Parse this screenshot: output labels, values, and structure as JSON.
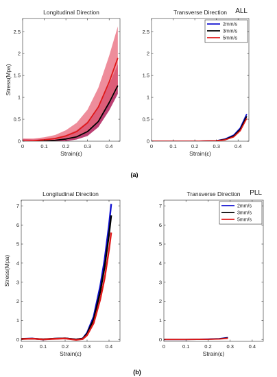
{
  "figure": {
    "panel_a_label": "(a)",
    "panel_b_label": "(b)",
    "colors": {
      "v2": "#1010d0",
      "v3": "#000000",
      "v5": "#e01818",
      "band_red": "#e8677a",
      "band_dark": "#b01f5a"
    }
  },
  "chart_data": [
    {
      "id": "a_long",
      "type": "line",
      "title": "Longitudinal Direction",
      "tag": "",
      "xlabel": "Strain(ε)",
      "ylabel": "Stress(Mpa)",
      "xlim": [
        0,
        0.45
      ],
      "ylim": [
        0,
        2.8
      ],
      "xticks": [
        "0",
        "0.1",
        "0.2",
        "0.3",
        "0.4"
      ],
      "xtick_values": [
        0,
        0.1,
        0.2,
        0.3,
        0.4
      ],
      "yticks": [
        "0",
        "0.5",
        "1",
        "1.5",
        "2",
        "2.5"
      ],
      "ytick_values": [
        0,
        0.5,
        1,
        1.5,
        2,
        2.5
      ],
      "legend": false,
      "bands": [
        {
          "series": "3mm/s",
          "x": [
            0,
            0.05,
            0.1,
            0.15,
            0.2,
            0.25,
            0.3,
            0.35,
            0.4,
            0.44
          ],
          "lower": [
            -0.05,
            -0.05,
            -0.03,
            -0.01,
            0.0,
            0.04,
            0.12,
            0.32,
            0.7,
            1.08
          ],
          "upper": [
            0.05,
            0.04,
            0.05,
            0.08,
            0.14,
            0.25,
            0.45,
            0.78,
            1.3,
            1.75
          ]
        },
        {
          "series": "5mm/s",
          "x": [
            0,
            0.05,
            0.1,
            0.15,
            0.2,
            0.25,
            0.3,
            0.35,
            0.4,
            0.44
          ],
          "lower": [
            -0.05,
            -0.04,
            -0.02,
            0.0,
            0.03,
            0.08,
            0.2,
            0.45,
            0.85,
            1.2
          ],
          "upper": [
            0.06,
            0.06,
            0.09,
            0.14,
            0.25,
            0.42,
            0.72,
            1.22,
            1.95,
            2.62
          ]
        }
      ],
      "series": [
        {
          "name": "3mm/s",
          "x": [
            0,
            0.05,
            0.1,
            0.15,
            0.2,
            0.25,
            0.3,
            0.35,
            0.4,
            0.44
          ],
          "y": [
            0.0,
            -0.01,
            0.0,
            0.02,
            0.05,
            0.1,
            0.22,
            0.45,
            0.88,
            1.27
          ]
        },
        {
          "name": "5mm/s",
          "x": [
            0,
            0.05,
            0.1,
            0.15,
            0.2,
            0.25,
            0.3,
            0.35,
            0.4,
            0.44
          ],
          "y": [
            0.0,
            0.01,
            0.03,
            0.06,
            0.12,
            0.22,
            0.42,
            0.78,
            1.35,
            1.9
          ]
        }
      ]
    },
    {
      "id": "a_trans",
      "type": "line",
      "title": "Transverse Direction",
      "tag": "ALL",
      "xlabel": "Strain(ε)",
      "ylabel": "",
      "xlim": [
        0,
        0.45
      ],
      "ylim": [
        0,
        2.8
      ],
      "xticks": [
        "0",
        "0.1",
        "0.2",
        "0.3",
        "0.4"
      ],
      "xtick_values": [
        0,
        0.1,
        0.2,
        0.3,
        0.4
      ],
      "yticks": [
        "0",
        "0.5",
        "1",
        "1.5",
        "2",
        "2.5"
      ],
      "ytick_values": [
        0,
        0.5,
        1,
        1.5,
        2,
        2.5
      ],
      "legend": true,
      "legend_position": "top-right",
      "bands": [],
      "series": [
        {
          "name": "2mm/s",
          "x": [
            0,
            0.1,
            0.2,
            0.3,
            0.34,
            0.38,
            0.41,
            0.44
          ],
          "y": [
            0.0,
            0.0,
            0.0,
            0.01,
            0.05,
            0.14,
            0.3,
            0.62
          ]
        },
        {
          "name": "3mm/s",
          "x": [
            0,
            0.1,
            0.2,
            0.3,
            0.34,
            0.38,
            0.41,
            0.44
          ],
          "y": [
            0.0,
            0.0,
            0.0,
            0.01,
            0.04,
            0.12,
            0.27,
            0.57
          ]
        },
        {
          "name": "5mm/s",
          "x": [
            0,
            0.1,
            0.2,
            0.3,
            0.34,
            0.38,
            0.41,
            0.44
          ],
          "y": [
            0.0,
            0.0,
            0.0,
            0.01,
            0.03,
            0.1,
            0.24,
            0.52
          ]
        }
      ]
    },
    {
      "id": "b_long",
      "type": "line",
      "title": "Longitudinal Direction",
      "tag": "",
      "xlabel": "Strain(ε)",
      "ylabel": "Stress(Mpa)",
      "xlim": [
        0,
        0.45
      ],
      "ylim": [
        -0.1,
        7.3
      ],
      "xticks": [
        "0",
        "0.1",
        "0.2",
        "0.3",
        "0.4"
      ],
      "xtick_values": [
        0,
        0.1,
        0.2,
        0.3,
        0.4
      ],
      "yticks": [
        "0",
        "1",
        "2",
        "3",
        "4",
        "5",
        "6",
        "7"
      ],
      "ytick_values": [
        0,
        1,
        2,
        3,
        4,
        5,
        6,
        7
      ],
      "legend": false,
      "bands": [],
      "series": [
        {
          "name": "2mm/s",
          "x": [
            0,
            0.05,
            0.1,
            0.15,
            0.2,
            0.25,
            0.28,
            0.3,
            0.33,
            0.36,
            0.38,
            0.4,
            0.41
          ],
          "y": [
            0.03,
            0.05,
            0.0,
            0.04,
            0.06,
            0.0,
            0.05,
            0.35,
            1.2,
            2.8,
            4.2,
            6.0,
            7.1
          ]
        },
        {
          "name": "3mm/s",
          "x": [
            0,
            0.05,
            0.1,
            0.15,
            0.2,
            0.25,
            0.28,
            0.3,
            0.33,
            0.36,
            0.38,
            0.4,
            0.41
          ],
          "y": [
            0.03,
            0.04,
            0.01,
            0.04,
            0.06,
            0.0,
            0.04,
            0.3,
            1.05,
            2.5,
            3.8,
            5.5,
            6.5
          ]
        },
        {
          "name": "5mm/s",
          "x": [
            0,
            0.05,
            0.1,
            0.15,
            0.2,
            0.25,
            0.28,
            0.3,
            0.33,
            0.36,
            0.38,
            0.4,
            0.41
          ],
          "y": [
            0.02,
            0.04,
            0.0,
            0.03,
            0.05,
            -0.02,
            0.02,
            0.22,
            0.85,
            2.1,
            3.2,
            4.7,
            5.6
          ]
        }
      ]
    },
    {
      "id": "b_trans",
      "type": "line",
      "title": "Transverse Direction",
      "tag": "PLL",
      "xlabel": "Strain(ε)",
      "ylabel": "",
      "xlim": [
        0,
        0.45
      ],
      "ylim": [
        -0.1,
        7.3
      ],
      "xticks": [
        "0",
        "0.1",
        "0.2",
        "0.3",
        "0.4"
      ],
      "xtick_values": [
        0,
        0.1,
        0.2,
        0.3,
        0.4
      ],
      "yticks": [
        "0",
        "1",
        "2",
        "3",
        "4",
        "5",
        "6",
        "7"
      ],
      "ytick_values": [
        0,
        1,
        2,
        3,
        4,
        5,
        6,
        7
      ],
      "legend": true,
      "legend_position": "top-right",
      "bands": [],
      "series": [
        {
          "name": "2mm/s",
          "x": [
            0,
            0.1,
            0.2,
            0.25,
            0.29
          ],
          "y": [
            0.0,
            0.0,
            0.02,
            0.04,
            0.1
          ]
        },
        {
          "name": "3mm/s",
          "x": [
            0,
            0.1,
            0.2,
            0.25,
            0.29
          ],
          "y": [
            0.0,
            0.0,
            0.01,
            0.03,
            0.08
          ]
        },
        {
          "name": "5mm/s",
          "x": [
            0,
            0.1,
            0.2,
            0.25,
            0.29
          ],
          "y": [
            0.0,
            0.0,
            0.01,
            0.02,
            0.06
          ]
        }
      ]
    }
  ]
}
